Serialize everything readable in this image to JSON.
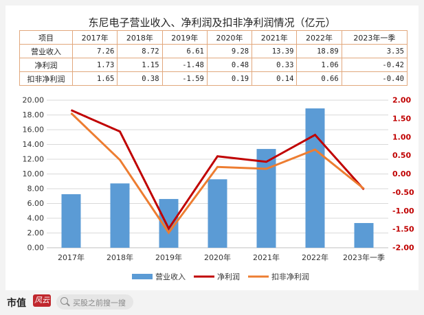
{
  "title": "东尼电子营业收入、净利润及扣非净利润情况（亿元）",
  "table": {
    "headers": [
      "项目",
      "2017年",
      "2018年",
      "2019年",
      "2020年",
      "2021年",
      "2022年",
      "2023年一季"
    ],
    "rows": [
      {
        "label": "营业收入",
        "values": [
          "7.26",
          "8.72",
          "6.61",
          "9.28",
          "13.39",
          "18.89",
          "3.35"
        ]
      },
      {
        "label": "净利润",
        "values": [
          "1.73",
          "1.15",
          "-1.48",
          "0.48",
          "0.33",
          "1.06",
          "-0.42"
        ]
      },
      {
        "label": "扣非净利润",
        "values": [
          "1.65",
          "0.38",
          "-1.59",
          "0.19",
          "0.14",
          "0.66",
          "-0.40"
        ]
      }
    ]
  },
  "chart_data": {
    "type": "bar",
    "categories": [
      "2017年",
      "2018年",
      "2019年",
      "2020年",
      "2021年",
      "2022年",
      "2023年一季"
    ],
    "series": [
      {
        "name": "营业收入",
        "type": "bar",
        "axis": "left",
        "color": "#5b9bd5",
        "values": [
          7.26,
          8.72,
          6.61,
          9.28,
          13.39,
          18.89,
          3.35
        ]
      },
      {
        "name": "净利润",
        "type": "line",
        "axis": "right",
        "color": "#c00000",
        "values": [
          1.73,
          1.15,
          -1.48,
          0.48,
          0.33,
          1.06,
          -0.42
        ]
      },
      {
        "name": "扣非净利润",
        "type": "line",
        "axis": "right",
        "color": "#ed7d31",
        "values": [
          1.65,
          0.38,
          -1.59,
          0.19,
          0.14,
          0.66,
          -0.4
        ]
      }
    ],
    "ylim_left": [
      0,
      20
    ],
    "yticks_left": [
      "20.00",
      "18.00",
      "16.00",
      "14.00",
      "12.00",
      "10.00",
      "8.00",
      "6.00",
      "4.00",
      "2.00",
      "0.00"
    ],
    "ylim_right": [
      -2,
      2
    ],
    "yticks_right": [
      "2.00",
      "1.50",
      "1.00",
      "0.50",
      "0.00",
      "-0.50",
      "-1.00",
      "-1.50",
      "-2.00"
    ],
    "grid": true,
    "legend": "bottom"
  },
  "footer": {
    "brand": "市值",
    "brand_script": "风云",
    "search_placeholder": "买股之前搜一搜"
  }
}
